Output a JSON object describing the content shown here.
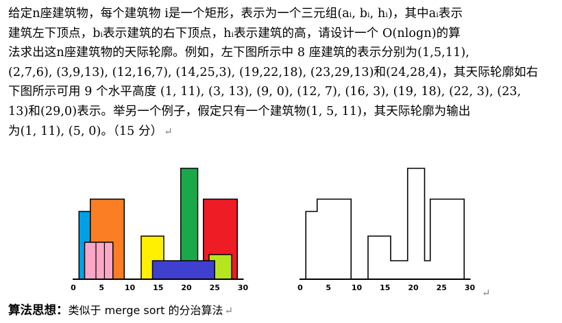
{
  "problem": {
    "lines": [
      "给定n座建筑物，每个建筑物 i是一个矩形，表示为一个三元组(aᵢ, bᵢ, hᵢ)，其中aᵢ表示",
      "建筑左下顶点，bᵢ表示建筑的右下顶点，hᵢ表示建筑的高，请设计一个 O(nlogn)的算",
      "法求出这n座建筑物的天际轮廓。例如，左下图所示中 8 座建筑的表示分别为(1,5,11),",
      "(2,7,6), (3,9,13), (12,16,7), (14,25,3), (19,22,18), (23,29,13)和(24,28,4)，其天际轮廓如右",
      "下图所示可用 9 个水平高度 (1, 11), (3, 13), (9, 0), (12, 7), (16, 3), (19, 18), (22, 3), (23,",
      "13)和(29,0)表示。举另一个例子，假定只有一个建筑物(1, 5, 11)，其天际轮廓为输出",
      "为(1, 11), (5, 0)。（15 分）"
    ],
    "return_mark": "↵"
  },
  "figure_left": {
    "ticks": [
      "0",
      "5",
      "10",
      "15",
      "20",
      "25",
      "30"
    ],
    "buildings": [
      {
        "a": 1,
        "b": 5,
        "h": 11,
        "color": "#00a0e6"
      },
      {
        "a": 3,
        "b": 9,
        "h": 13,
        "color": "#fb7d24"
      },
      {
        "a": 2,
        "b": 7,
        "h": 6,
        "color": "#fca7c5"
      },
      {
        "a": 12,
        "b": 16,
        "h": 7,
        "color": "#ffef00"
      },
      {
        "a": 19,
        "b": 22,
        "h": 18,
        "color": "#1aa84a"
      },
      {
        "a": 23,
        "b": 29,
        "h": 13,
        "color": "#ee1c25"
      },
      {
        "a": 24,
        "b": 28,
        "h": 4,
        "color": "#b5e61d"
      },
      {
        "a": 14,
        "b": 25,
        "h": 3,
        "color": "#3f3fd0"
      }
    ],
    "pink_dividers": [
      4,
      5.5
    ]
  },
  "figure_right": {
    "ticks": [
      "0",
      "5",
      "10",
      "15",
      "20",
      "25",
      "30"
    ],
    "skyline": [
      [
        1,
        11
      ],
      [
        3,
        13
      ],
      [
        9,
        0
      ],
      [
        12,
        7
      ],
      [
        16,
        3
      ],
      [
        19,
        18
      ],
      [
        22,
        3
      ],
      [
        23,
        13
      ],
      [
        29,
        0
      ]
    ]
  },
  "figure_return_mark": "↵",
  "heading": {
    "label": "算法思想：",
    "text": "类似于 merge sort 的分治算法",
    "return_mark": "↵"
  }
}
